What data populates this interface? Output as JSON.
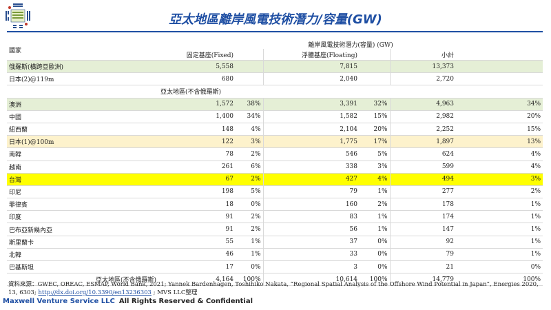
{
  "title": "亞太地區離岸風電技術潛力/容量(GW)",
  "logo": {
    "text": "Maxwell Venture Service LLC",
    "icon": "bagua-logo"
  },
  "table": {
    "header_country": "國家",
    "header_group": "離岸風電技術潛力(容量) (GW)",
    "header_fixed": "固定基座(Fixed)",
    "header_floating": "浮體基座(Floating)",
    "header_subtotal": "小計",
    "section_label": "亞太地區(不含俄羅斯)",
    "rows_top": [
      {
        "name": "俄羅斯(橫跨亞歐洲)",
        "fixed": "5,558",
        "fixed_pct": "",
        "floating": "7,815",
        "floating_pct": "",
        "total": "13,373",
        "total_pct": ""
      },
      {
        "name": "日本(2)@119m",
        "fixed": "680",
        "fixed_pct": "",
        "floating": "2,040",
        "floating_pct": "",
        "total": "2,720",
        "total_pct": ""
      }
    ],
    "rows": [
      {
        "name": "澳洲",
        "fixed": "1,572",
        "fixed_pct": "38%",
        "floating": "3,391",
        "floating_pct": "32%",
        "total": "4,963",
        "total_pct": "34%"
      },
      {
        "name": "中國",
        "fixed": "1,400",
        "fixed_pct": "34%",
        "floating": "1,582",
        "floating_pct": "15%",
        "total": "2,982",
        "total_pct": "20%"
      },
      {
        "name": "紐西蘭",
        "fixed": "148",
        "fixed_pct": "4%",
        "floating": "2,104",
        "floating_pct": "20%",
        "total": "2,252",
        "total_pct": "15%"
      },
      {
        "name": "日本(1)@100m",
        "fixed": "122",
        "fixed_pct": "3%",
        "floating": "1,775",
        "floating_pct": "17%",
        "total": "1,897",
        "total_pct": "13%"
      },
      {
        "name": "南韓",
        "fixed": "78",
        "fixed_pct": "2%",
        "floating": "546",
        "floating_pct": "5%",
        "total": "624",
        "total_pct": "4%"
      },
      {
        "name": "越南",
        "fixed": "261",
        "fixed_pct": "6%",
        "floating": "338",
        "floating_pct": "3%",
        "total": "599",
        "total_pct": "4%"
      },
      {
        "name": "台灣",
        "fixed": "67",
        "fixed_pct": "2%",
        "floating": "427",
        "floating_pct": "4%",
        "total": "494",
        "total_pct": "3%"
      },
      {
        "name": "印尼",
        "fixed": "198",
        "fixed_pct": "5%",
        "floating": "79",
        "floating_pct": "1%",
        "total": "277",
        "total_pct": "2%"
      },
      {
        "name": "菲律賓",
        "fixed": "18",
        "fixed_pct": "0%",
        "floating": "160",
        "floating_pct": "2%",
        "total": "178",
        "total_pct": "1%"
      },
      {
        "name": "印度",
        "fixed": "91",
        "fixed_pct": "2%",
        "floating": "83",
        "floating_pct": "1%",
        "total": "174",
        "total_pct": "1%"
      },
      {
        "name": "巴布亞新幾內亞",
        "fixed": "91",
        "fixed_pct": "2%",
        "floating": "56",
        "floating_pct": "1%",
        "total": "147",
        "total_pct": "1%"
      },
      {
        "name": "斯里蘭卡",
        "fixed": "55",
        "fixed_pct": "1%",
        "floating": "37",
        "floating_pct": "0%",
        "total": "92",
        "total_pct": "1%"
      },
      {
        "name": "北韓",
        "fixed": "46",
        "fixed_pct": "1%",
        "floating": "33",
        "floating_pct": "0%",
        "total": "79",
        "total_pct": "1%"
      },
      {
        "name": "巴基斯坦",
        "fixed": "17",
        "fixed_pct": "0%",
        "floating": "3",
        "floating_pct": "0%",
        "total": "21",
        "total_pct": "0%"
      }
    ],
    "total_row": {
      "name": "亞太地區(不含俄羅斯)",
      "fixed": "4,164",
      "fixed_pct": "100%",
      "floating": "10,614",
      "floating_pct": "100%",
      "total": "14,779",
      "total_pct": "100%"
    }
  },
  "source_prefix": "資料來源：GWEC, OREAC, ESMAP, World Bank, 2021; Yannek Bardenhagen, Toshihiko Nakata, “Regional Spatial Analysis of the Offshore Wind Potential in Japan”, Energies 2020, 13, 6303; ",
  "source_link": "http://dx.doi.org/10.3390/en13236303",
  "source_suffix": " ; MVS LLC整理",
  "footer_org": "Maxwell Venture Service LLC",
  "footer_rights": "All Rights Reserved & Confidential",
  "colors": {
    "title": "#1f4fa3",
    "green_row": "#e5efd6",
    "cream_row": "#fdf2cc",
    "highlight_row": "#ffff00"
  }
}
